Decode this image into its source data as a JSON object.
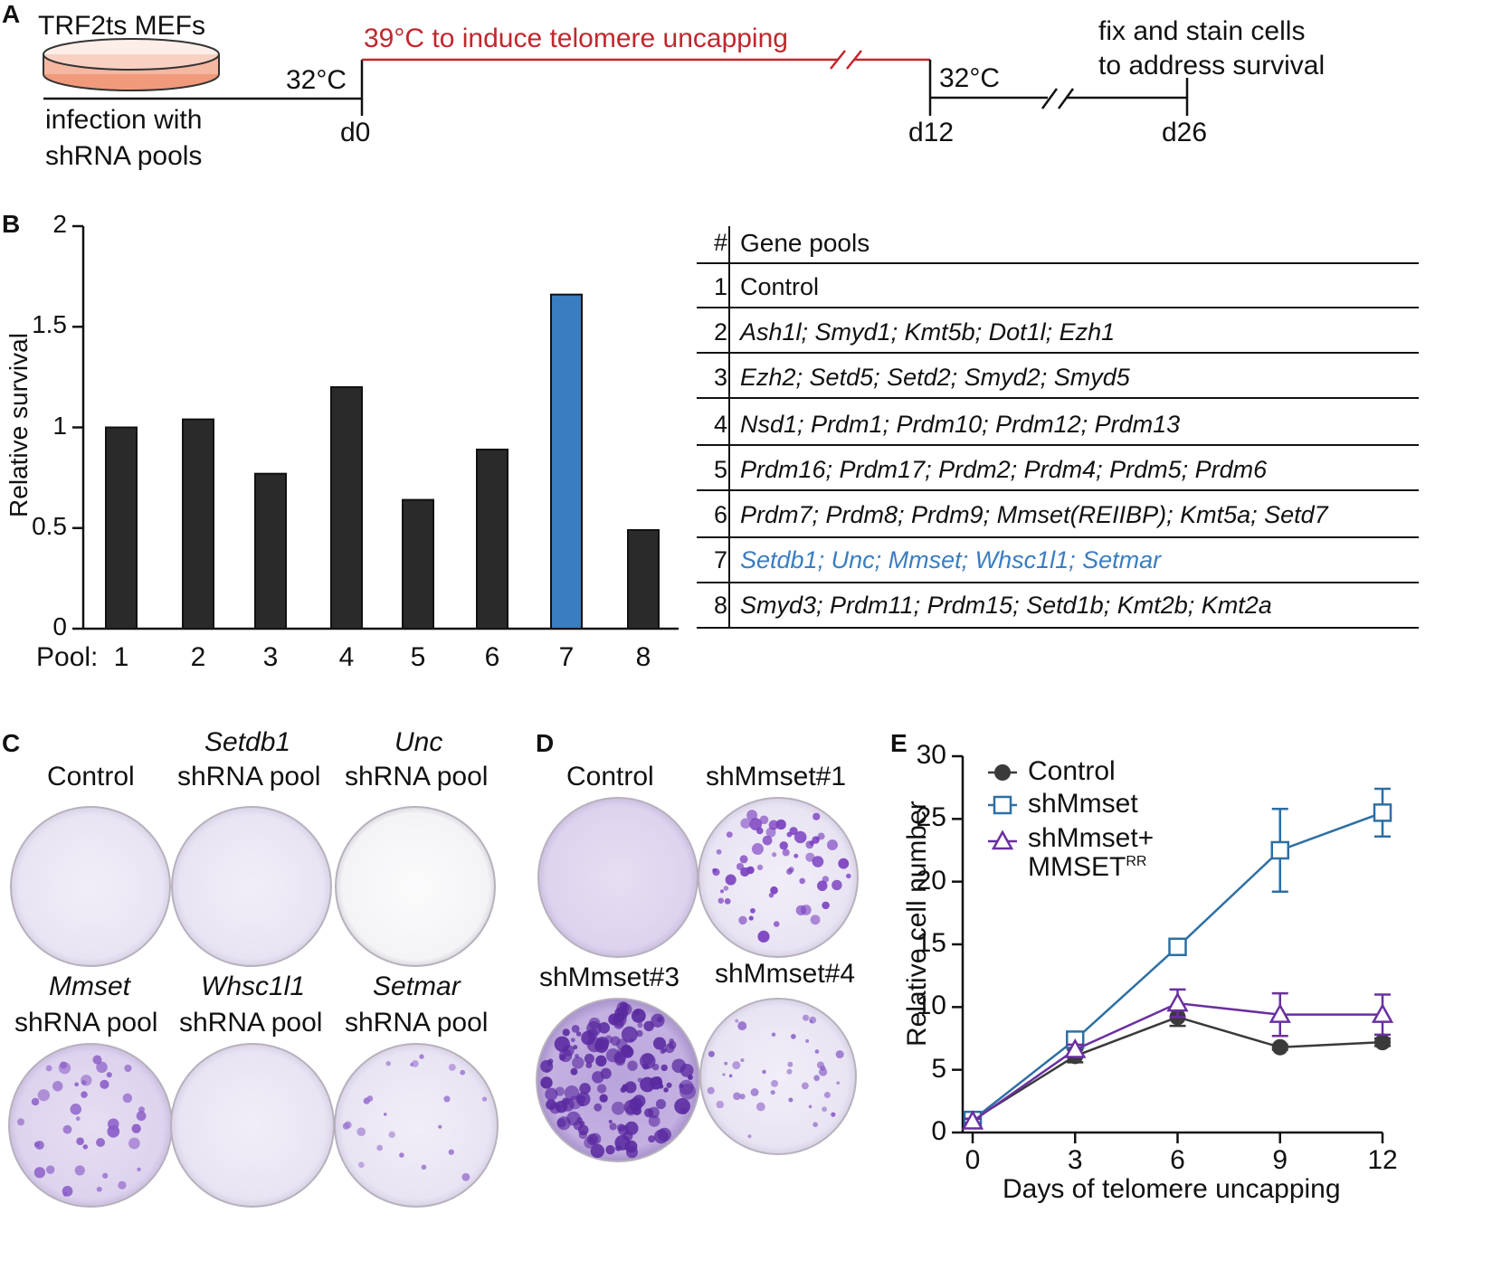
{
  "panel_letters": {
    "a": "A",
    "b": "B",
    "c": "C",
    "d": "D",
    "e": "E"
  },
  "timeline": {
    "cells_label": "TRF2ts MEFs",
    "infection_line1": "infection with",
    "infection_line2": "shRNA pools",
    "temp_start": "32°C",
    "uncapping": "39°C to induce telomere uncapping",
    "temp_recovery": "32°C",
    "fix_line1": "fix and stain cells",
    "fix_line2": "to address survival",
    "day0": "d0",
    "day12": "d12",
    "day26": "d26"
  },
  "colors": {
    "bar": "#2a2a2a",
    "highlight": "#3a7dc0",
    "uncapping": "#c1272d",
    "shmmset": "#2d6fa3",
    "rescue": "#6a2fa0",
    "control": "#3a3a3a"
  },
  "chart_data": [
    {
      "type": "bar",
      "title": "",
      "xlabel": "Pool:",
      "ylabel": "Relative survival",
      "ylim": [
        0,
        2
      ],
      "yticks": [
        "0",
        "0.5",
        "1",
        "1.5",
        "2"
      ],
      "categories": [
        "1",
        "2",
        "3",
        "4",
        "5",
        "6",
        "7",
        "8"
      ],
      "values": [
        1.0,
        1.04,
        0.77,
        1.2,
        0.64,
        0.89,
        1.66,
        0.49
      ],
      "highlight_index": 6
    },
    {
      "type": "line",
      "xlabel": "Days of telomere uncapping",
      "ylabel": "Relative cell number",
      "x": [
        0,
        3,
        6,
        9,
        12
      ],
      "xticks": [
        "0",
        "3",
        "6",
        "9",
        "12"
      ],
      "yticks": [
        "0",
        "5",
        "10",
        "15",
        "20",
        "25",
        "30"
      ],
      "ylim": [
        0,
        30
      ],
      "xlim": [
        0,
        12
      ],
      "series": [
        {
          "name": "Control",
          "marker": "circle",
          "values": [
            1.0,
            6.1,
            9.2,
            6.8,
            7.2
          ],
          "errors": [
            0.3,
            0.5,
            0.7,
            0.2,
            0.3
          ]
        },
        {
          "name": "shMmset",
          "marker": "square",
          "values": [
            1.0,
            7.4,
            14.8,
            22.5,
            25.5
          ],
          "errors": [
            0.2,
            0.4,
            0.4,
            3.3,
            1.9
          ]
        },
        {
          "name": "shMmset+",
          "name_line2": "MMSET",
          "name_sup": "RR",
          "marker": "triangle",
          "values": [
            0.9,
            6.6,
            10.3,
            9.4,
            9.4
          ],
          "errors": [
            0.2,
            0.4,
            1.1,
            1.7,
            1.6
          ]
        }
      ]
    }
  ],
  "gene_table": {
    "header_num": "#",
    "header_pools": "Gene pools",
    "rows": [
      {
        "num": "1",
        "genes": "Control"
      },
      {
        "num": "2",
        "genes": "Ash1l; Smyd1; Kmt5b; Dot1l; Ezh1"
      },
      {
        "num": "3",
        "genes": "Ezh2; Setd5; Setd2; Smyd2; Smyd5"
      },
      {
        "num": "4",
        "genes": "Nsd1; Prdm1; Prdm10; Prdm12; Prdm13"
      },
      {
        "num": "5",
        "genes": "Prdm16; Prdm17; Prdm2; Prdm4; Prdm5; Prdm6"
      },
      {
        "num": "6",
        "genes": "Prdm7; Prdm8; Prdm9; Mmset(REIIBP); Kmt5a; Setd7"
      },
      {
        "num": "7",
        "genes": "Setdb1; Unc; Mmset; Whsc1l1; Setmar"
      },
      {
        "num": "8",
        "genes": "Smyd3; Prdm11; Prdm15; Setd1b; Kmt2b; Kmt2a"
      }
    ]
  },
  "panel_c": {
    "control": "Control",
    "setdb1_gene": "Setdb1",
    "unc_gene": "Unc",
    "mmset_gene": "Mmset",
    "whsc_gene": "Whsc1l1",
    "setmar_gene": "Setmar",
    "pool_suffix": "shRNA pool"
  },
  "panel_d": {
    "control": "Control",
    "sh1": "shMmset#1",
    "sh3": "shMmset#3",
    "sh4": "shMmset#4"
  }
}
